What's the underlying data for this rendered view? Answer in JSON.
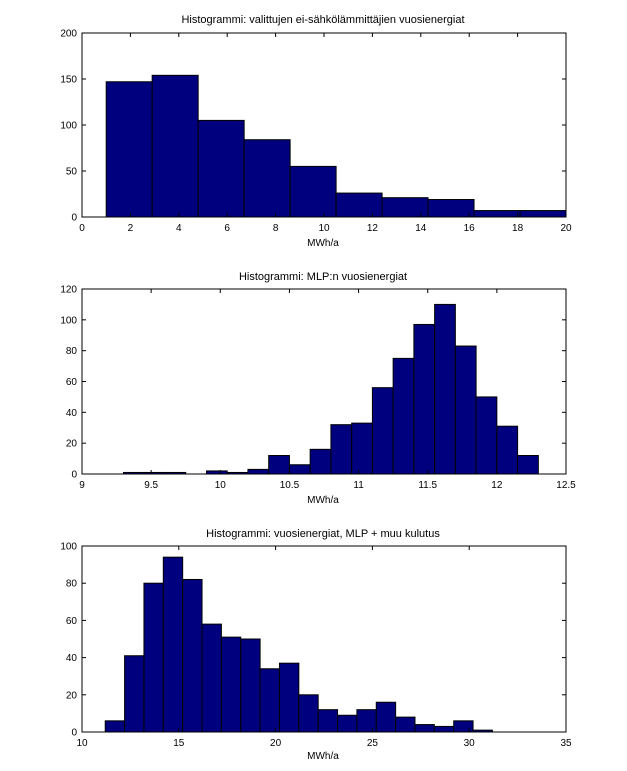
{
  "chart_data": [
    {
      "type": "bar",
      "title": "Histogrammi: valittujen ei-sähkölämmittäjien vuosienergiat",
      "xlabel": "MWh/a",
      "ylabel": "",
      "xlim": [
        0,
        20
      ],
      "ylim": [
        0,
        200
      ],
      "xticks": [
        "0",
        "2",
        "4",
        "6",
        "8",
        "10",
        "12",
        "14",
        "16",
        "18",
        "20"
      ],
      "yticks": [
        "0",
        "50",
        "100",
        "150",
        "200"
      ],
      "bins": [
        {
          "x0": 1.0,
          "x1": 2.9,
          "count": 147
        },
        {
          "x0": 2.9,
          "x1": 4.8,
          "count": 154
        },
        {
          "x0": 4.8,
          "x1": 6.7,
          "count": 105
        },
        {
          "x0": 6.7,
          "x1": 8.6,
          "count": 84
        },
        {
          "x0": 8.6,
          "x1": 10.5,
          "count": 55
        },
        {
          "x0": 10.5,
          "x1": 12.4,
          "count": 26
        },
        {
          "x0": 12.4,
          "x1": 14.3,
          "count": 21
        },
        {
          "x0": 14.3,
          "x1": 16.2,
          "count": 19
        },
        {
          "x0": 16.2,
          "x1": 18.1,
          "count": 7
        },
        {
          "x0": 18.1,
          "x1": 20.0,
          "count": 7
        }
      ]
    },
    {
      "type": "bar",
      "title": "Histogrammi: MLP:n vuosienergiat",
      "xlabel": "MWh/a",
      "ylabel": "",
      "xlim": [
        9,
        12.5
      ],
      "ylim": [
        0,
        120
      ],
      "xticks": [
        "9",
        "9.5",
        "10",
        "10.5",
        "11",
        "11.5",
        "12",
        "12.5"
      ],
      "yticks": [
        "0",
        "20",
        "40",
        "60",
        "80",
        "100",
        "120"
      ],
      "bins": [
        {
          "x0": 9.3,
          "x1": 9.45,
          "count": 1
        },
        {
          "x0": 9.45,
          "x1": 9.6,
          "count": 1
        },
        {
          "x0": 9.6,
          "x1": 9.75,
          "count": 1
        },
        {
          "x0": 9.75,
          "x1": 9.9,
          "count": 0
        },
        {
          "x0": 9.9,
          "x1": 10.05,
          "count": 2
        },
        {
          "x0": 10.05,
          "x1": 10.2,
          "count": 1
        },
        {
          "x0": 10.2,
          "x1": 10.35,
          "count": 3
        },
        {
          "x0": 10.35,
          "x1": 10.5,
          "count": 12
        },
        {
          "x0": 10.5,
          "x1": 10.65,
          "count": 6
        },
        {
          "x0": 10.65,
          "x1": 10.8,
          "count": 16
        },
        {
          "x0": 10.8,
          "x1": 10.95,
          "count": 32
        },
        {
          "x0": 10.95,
          "x1": 11.1,
          "count": 33
        },
        {
          "x0": 11.1,
          "x1": 11.25,
          "count": 56
        },
        {
          "x0": 11.25,
          "x1": 11.4,
          "count": 75
        },
        {
          "x0": 11.4,
          "x1": 11.55,
          "count": 97
        },
        {
          "x0": 11.55,
          "x1": 11.7,
          "count": 110
        },
        {
          "x0": 11.7,
          "x1": 11.85,
          "count": 83
        },
        {
          "x0": 11.85,
          "x1": 12.0,
          "count": 50
        },
        {
          "x0": 12.0,
          "x1": 12.15,
          "count": 31
        },
        {
          "x0": 12.15,
          "x1": 12.3,
          "count": 12
        }
      ]
    },
    {
      "type": "bar",
      "title": "Histogrammi: vuosienergiat, MLP + muu kulutus",
      "xlabel": "MWh/a",
      "ylabel": "",
      "xlim": [
        10,
        35
      ],
      "ylim": [
        0,
        100
      ],
      "xticks": [
        "10",
        "15",
        "20",
        "25",
        "30",
        "35"
      ],
      "yticks": [
        "0",
        "20",
        "40",
        "60",
        "80",
        "100"
      ],
      "bins": [
        {
          "x0": 11.2,
          "x1": 12.2,
          "count": 6
        },
        {
          "x0": 12.2,
          "x1": 13.2,
          "count": 41
        },
        {
          "x0": 13.2,
          "x1": 14.2,
          "count": 80
        },
        {
          "x0": 14.2,
          "x1": 15.2,
          "count": 94
        },
        {
          "x0": 15.2,
          "x1": 16.2,
          "count": 82
        },
        {
          "x0": 16.2,
          "x1": 17.2,
          "count": 58
        },
        {
          "x0": 17.2,
          "x1": 18.2,
          "count": 51
        },
        {
          "x0": 18.2,
          "x1": 19.2,
          "count": 50
        },
        {
          "x0": 19.2,
          "x1": 20.2,
          "count": 34
        },
        {
          "x0": 20.2,
          "x1": 21.2,
          "count": 37
        },
        {
          "x0": 21.2,
          "x1": 22.2,
          "count": 20
        },
        {
          "x0": 22.2,
          "x1": 23.2,
          "count": 12
        },
        {
          "x0": 23.2,
          "x1": 24.2,
          "count": 9
        },
        {
          "x0": 24.2,
          "x1": 25.2,
          "count": 12
        },
        {
          "x0": 25.2,
          "x1": 26.2,
          "count": 16
        },
        {
          "x0": 26.2,
          "x1": 27.2,
          "count": 8
        },
        {
          "x0": 27.2,
          "x1": 28.2,
          "count": 4
        },
        {
          "x0": 28.2,
          "x1": 29.2,
          "count": 3
        },
        {
          "x0": 29.2,
          "x1": 30.2,
          "count": 6
        },
        {
          "x0": 30.2,
          "x1": 31.2,
          "count": 1
        }
      ]
    }
  ],
  "colors": {
    "bar_fill": "#00007f",
    "bar_edge": "#000000",
    "axes": "#000000",
    "background": "#ffffff"
  }
}
